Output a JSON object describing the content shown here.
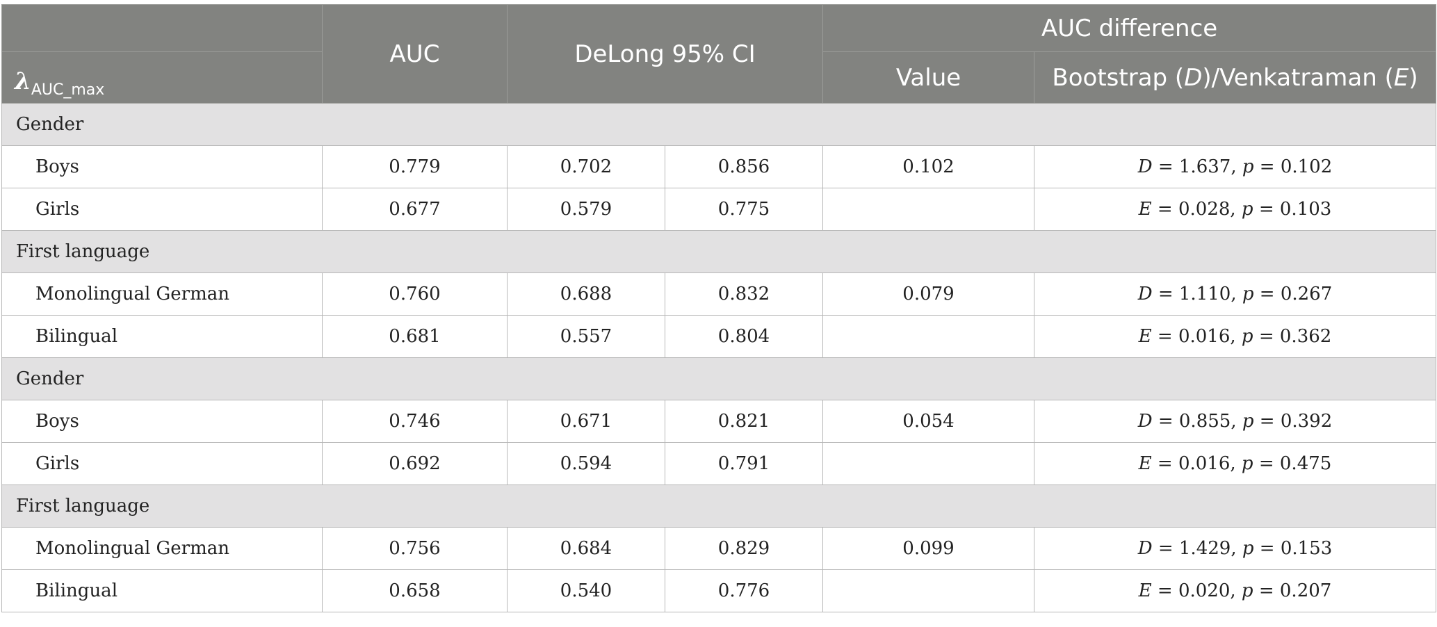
{
  "header": {
    "lambda_symbol": "λ",
    "lambda_subscript": "AUC_max",
    "auc": "AUC",
    "ci": "DeLong 95% CI",
    "diff": "AUC difference",
    "value": "Value",
    "test_prefix": "Bootstrap (",
    "test_d": "D",
    "test_mid": ")/Venkatraman (",
    "test_e": "E",
    "test_suffix": ")"
  },
  "sections": [
    {
      "title": "Gender",
      "rows": [
        {
          "label": "Boys",
          "auc": "0.779",
          "ci_low": "0.702",
          "ci_high": "0.856",
          "diff": "0.102",
          "stat_letter": "D",
          "stat_value": " = 1.637, ",
          "p_letter": "p",
          "p_value": " = 0.102"
        },
        {
          "label": "Girls",
          "auc": "0.677",
          "ci_low": "0.579",
          "ci_high": "0.775",
          "diff": "",
          "stat_letter": "E",
          "stat_value": " = 0.028, ",
          "p_letter": "p",
          "p_value": " = 0.103"
        }
      ]
    },
    {
      "title": "First language",
      "rows": [
        {
          "label": "Monolingual German",
          "auc": "0.760",
          "ci_low": "0.688",
          "ci_high": "0.832",
          "diff": "0.079",
          "stat_letter": "D",
          "stat_value": " = 1.110, ",
          "p_letter": "p",
          "p_value": " = 0.267"
        },
        {
          "label": "Bilingual",
          "auc": "0.681",
          "ci_low": "0.557",
          "ci_high": "0.804",
          "diff": "",
          "stat_letter": "E",
          "stat_value": " = 0.016, ",
          "p_letter": "p",
          "p_value": " = 0.362"
        }
      ]
    },
    {
      "title": "Gender",
      "rows": [
        {
          "label": "Boys",
          "auc": "0.746",
          "ci_low": "0.671",
          "ci_high": "0.821",
          "diff": "0.054",
          "stat_letter": "D",
          "stat_value": " = 0.855, ",
          "p_letter": "p",
          "p_value": " = 0.392"
        },
        {
          "label": "Girls",
          "auc": "0.692",
          "ci_low": "0.594",
          "ci_high": "0.791",
          "diff": "",
          "stat_letter": "E",
          "stat_value": " = 0.016, ",
          "p_letter": "p",
          "p_value": " = 0.475"
        }
      ]
    },
    {
      "title": "First language",
      "rows": [
        {
          "label": "Monolingual German",
          "auc": "0.756",
          "ci_low": "0.684",
          "ci_high": "0.829",
          "diff": "0.099",
          "stat_letter": "D",
          "stat_value": " = 1.429, ",
          "p_letter": "p",
          "p_value": " = 0.153"
        },
        {
          "label": "Bilingual",
          "auc": "0.658",
          "ci_low": "0.540",
          "ci_high": "0.776",
          "diff": "",
          "stat_letter": "E",
          "stat_value": " = 0.020, ",
          "p_letter": "p",
          "p_value": " = 0.207"
        }
      ]
    }
  ]
}
